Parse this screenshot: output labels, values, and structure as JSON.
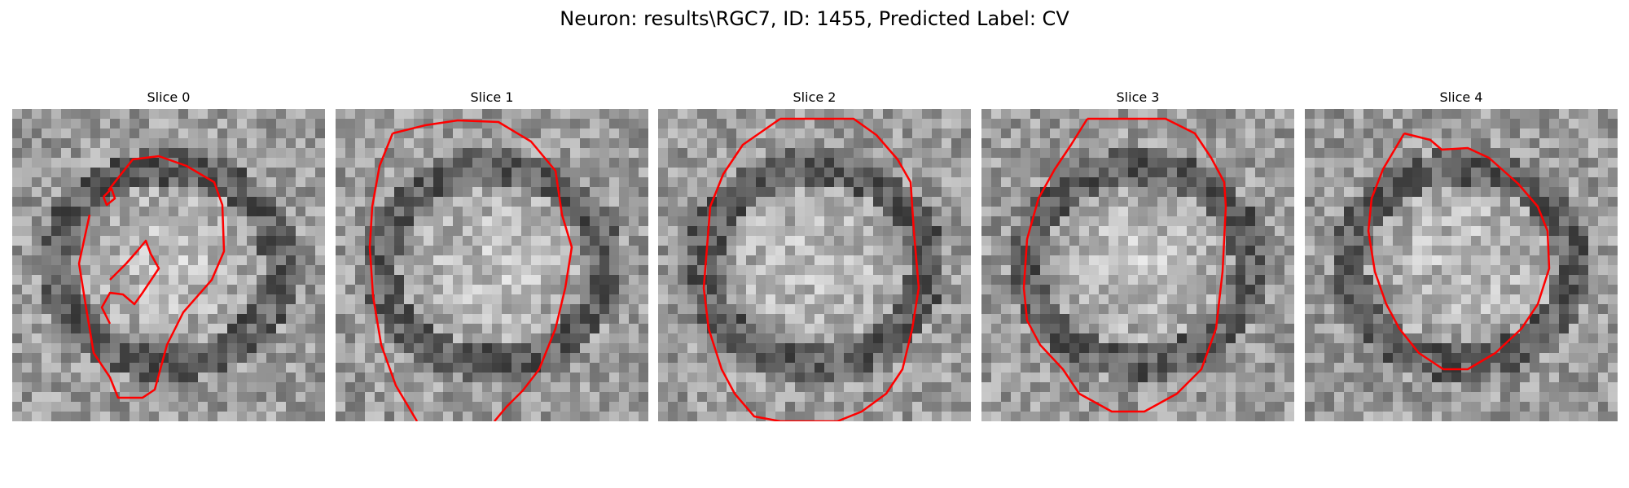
{
  "figure": {
    "title": "Neuron: results\\RGC7, ID: 1455, Predicted Label: CV"
  },
  "colors": {
    "contour": "#ff0000",
    "background": "#ffffff"
  },
  "panels": [
    {
      "title": "Slice 0"
    },
    {
      "title": "Slice 1"
    },
    {
      "title": "Slice 2"
    },
    {
      "title": "Slice 3"
    },
    {
      "title": "Slice 4"
    }
  ]
}
